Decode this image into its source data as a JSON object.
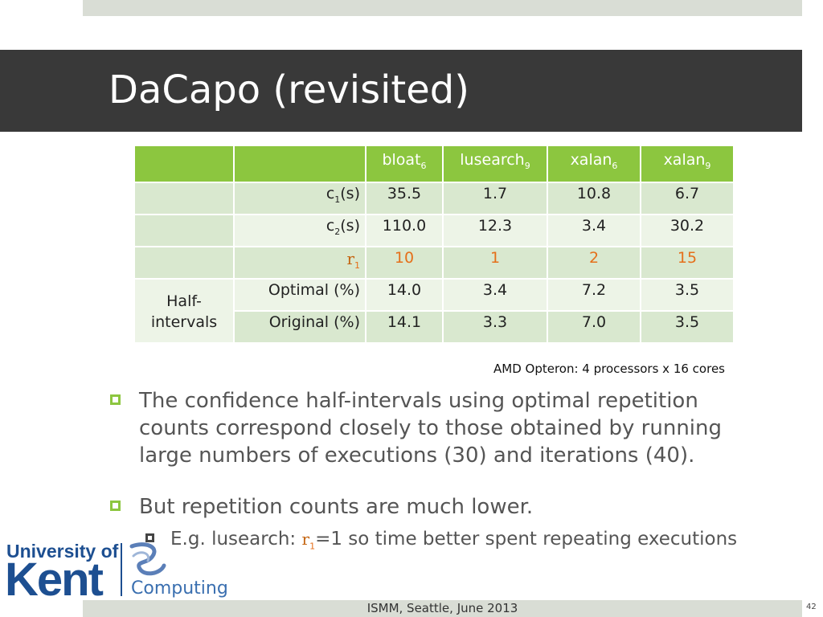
{
  "slide": {
    "title": "DaCapo (revisited)",
    "footer": "ISMM, Seattle, June 2013",
    "page_number": "42",
    "colors": {
      "accent": "#8cc63f",
      "title_bar": "#393939",
      "highlight": "#e56f1a"
    }
  },
  "table": {
    "columns": [
      {
        "name": "bloat",
        "sub": "6"
      },
      {
        "name": "lusearch",
        "sub": "9"
      },
      {
        "name": "xalan",
        "sub": "6"
      },
      {
        "name": "xalan",
        "sub": "9"
      }
    ],
    "c1": {
      "label_base": "c",
      "label_sub": "1",
      "label_unit": "(s)",
      "values": [
        "35.5",
        "1.7",
        "10.8",
        "6.7"
      ]
    },
    "c2": {
      "label_base": "c",
      "label_sub": "2",
      "label_unit": "(s)",
      "values": [
        "110.0",
        "12.3",
        "3.4",
        "30.2"
      ]
    },
    "r1": {
      "label_base": "r",
      "label_sub": "1",
      "values": [
        "10",
        "1",
        "2",
        "15"
      ]
    },
    "group_label_line1": "Half-",
    "group_label_line2": "intervals",
    "optimal": {
      "label": "Optimal (%)",
      "values": [
        "14.0",
        "3.4",
        "7.2",
        "3.5"
      ]
    },
    "original": {
      "label": "Original (%)",
      "values": [
        "14.1",
        "3.3",
        "7.0",
        "3.5"
      ]
    }
  },
  "footnote": "AMD Opteron: 4 processors x 16 cores",
  "bullets": {
    "b1_line1": "The confidence half-intervals using optimal repetition",
    "b1_line2": "counts correspond closely to those obtained by running",
    "b1_line3": "large numbers of executions (30) and iterations (40).",
    "b2": "But repetition counts are much lower.",
    "b2_sub_prefix": "E.g. lusearch: ",
    "b2_sub_symbol": "r",
    "b2_sub_symbol_sub": "1",
    "b2_sub_suffix": "=1 so time better spent repeating executions"
  },
  "logo": {
    "line1": "University of",
    "line2": "Kent",
    "department": "Computing"
  }
}
